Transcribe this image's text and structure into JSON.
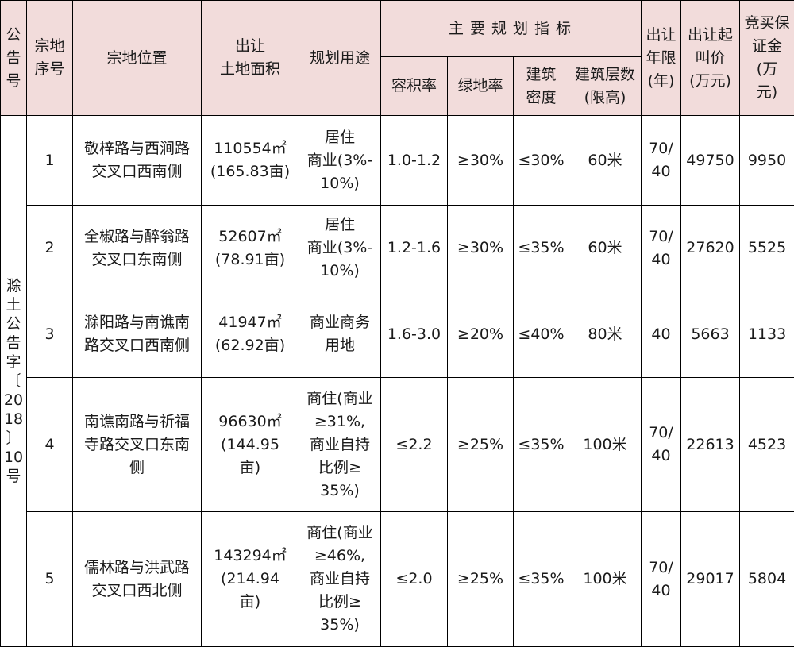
{
  "header": {
    "announcement": "公\n告\n号",
    "plot_no": "宗地\n序号",
    "location": "宗地位置",
    "area": "出让\n土地面积",
    "use": "规划用途",
    "indicators_group": "主要规划指标",
    "far": "容积率",
    "green": "绿地率",
    "density": "建筑\n密度",
    "floors": "建筑层数\n(限高)",
    "term": "出让\n年限\n(年)",
    "start_price": "出让起\n叫价\n(万元)",
    "deposit": "竞买保\n证金\n(万\n元)"
  },
  "announcement_no": "滁\n土\n公\n告\n字\n〔\n20\n18\n〕\n10\n号",
  "rows": [
    {
      "no": "1",
      "location": "敬梓路与西涧路\n交叉口西南侧",
      "area": "110554㎡\n(165.83亩)",
      "use": "居住\n商业(3%-\n10%)",
      "far": "1.0-1.2",
      "green": "≥30%",
      "density": "≤30%",
      "floors": "60米",
      "term": "70/\n40",
      "price": "49750",
      "deposit": "9950"
    },
    {
      "no": "2",
      "location": "全椒路与醉翁路\n交叉口东南侧",
      "area": "52607㎡\n(78.91亩)",
      "use": "居住\n商业(3%-\n10%)",
      "far": "1.2-1.6",
      "green": "≥30%",
      "density": "≤35%",
      "floors": "60米",
      "term": "70/\n40",
      "price": "27620",
      "deposit": "5525"
    },
    {
      "no": "3",
      "location": "滁阳路与南谯南\n路交叉口西南侧",
      "area": "41947㎡\n(62.92亩)",
      "use": "商业商务\n用地",
      "far": "1.6-3.0",
      "green": "≥20%",
      "density": "≤40%",
      "floors": "80米",
      "term": "40",
      "price": "5663",
      "deposit": "1133"
    },
    {
      "no": "4",
      "location": "南谯南路与祈福\n寺路交叉口东南\n侧",
      "area": "96630㎡\n(144.95\n亩)",
      "use": "商住(商业\n≥31%,\n商业自持\n比例≥\n35%)",
      "far": "≤2.2",
      "green": "≥25%",
      "density": "≤35%",
      "floors": "100米",
      "term": "70/\n40",
      "price": "22613",
      "deposit": "4523"
    },
    {
      "no": "5",
      "location": "儒林路与洪武路\n交叉口西北侧",
      "area": "143294㎡\n(214.94\n亩)",
      "use": "商住(商业\n≥46%,\n商业自持\n比例≥\n35%)",
      "far": "≤2.0",
      "green": "≥25%",
      "density": "≤35%",
      "floors": "100米",
      "term": "70/\n40",
      "price": "29017",
      "deposit": "5804"
    }
  ]
}
